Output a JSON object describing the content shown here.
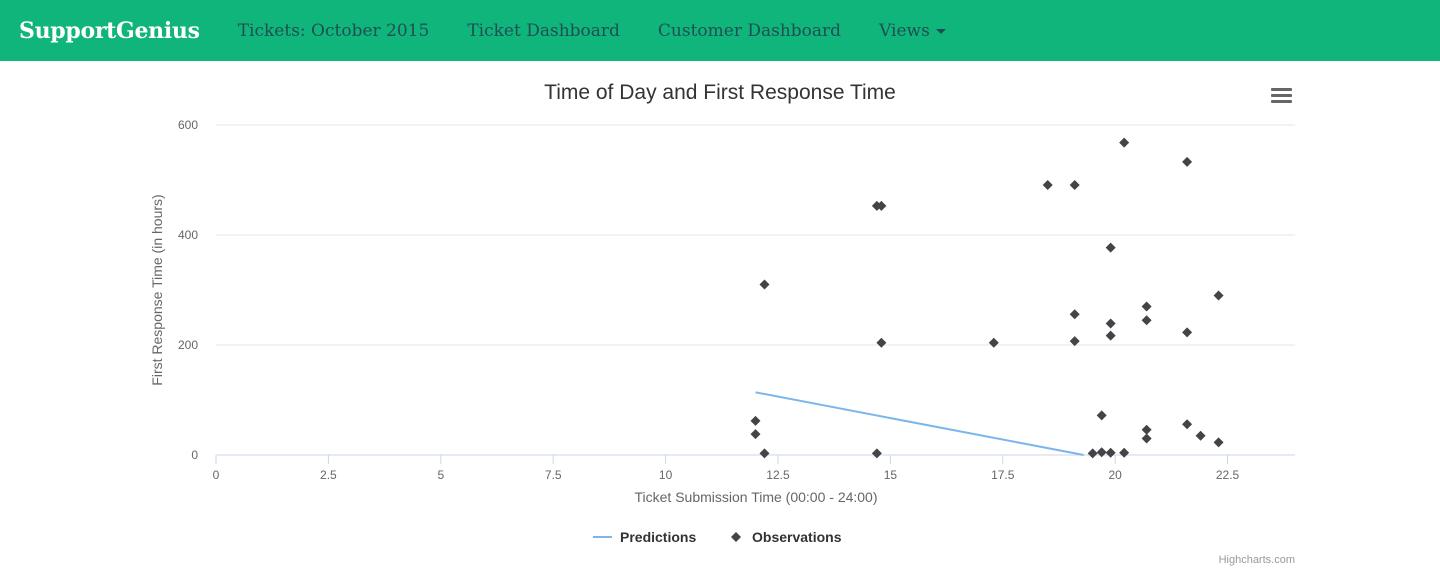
{
  "navbar": {
    "brand": "SupportGenius",
    "links": [
      {
        "label": "Tickets: October 2015"
      },
      {
        "label": "Ticket Dashboard"
      },
      {
        "label": "Customer Dashboard"
      },
      {
        "label": "Views"
      }
    ]
  },
  "credits": "Highcharts.com",
  "colors": {
    "navbar": "#0fb57b",
    "nav_link": "#1f4f52",
    "predictions": "#7cb5ec",
    "observations": "#434348"
  },
  "chart_data": {
    "type": "scatter",
    "title": "Time of Day and First Response Time",
    "xlabel": "Ticket Submission Time (00:00 - 24:00)",
    "ylabel": "First Response Time (in hours)",
    "xlim": [
      0,
      24
    ],
    "ylim": [
      0,
      600
    ],
    "xticks": [
      0,
      2.5,
      5,
      7.5,
      10,
      12.5,
      15,
      17.5,
      20,
      22.5
    ],
    "xtick_labels": [
      "0",
      "2.5",
      "5",
      "7.5",
      "10",
      "12.5",
      "15",
      "17.5",
      "20",
      "22.5"
    ],
    "yticks": [
      0,
      200,
      400,
      600
    ],
    "ytick_labels": [
      "0",
      "200",
      "400",
      "600"
    ],
    "grid": true,
    "legend_position": "bottom-center",
    "series": [
      {
        "name": "Predictions",
        "type": "line",
        "color": "#7cb5ec",
        "points": [
          [
            12.0,
            114
          ],
          [
            19.3,
            0
          ]
        ]
      },
      {
        "name": "Observations",
        "type": "scatter",
        "marker": "diamond",
        "color": "#434348",
        "points": [
          [
            12.0,
            62
          ],
          [
            12.0,
            38
          ],
          [
            12.2,
            310
          ],
          [
            12.2,
            3
          ],
          [
            14.7,
            453
          ],
          [
            14.8,
            453
          ],
          [
            14.8,
            204
          ],
          [
            14.7,
            3
          ],
          [
            17.3,
            204
          ],
          [
            18.5,
            491
          ],
          [
            19.1,
            491
          ],
          [
            19.1,
            256
          ],
          [
            19.1,
            207
          ],
          [
            19.5,
            3
          ],
          [
            19.7,
            72
          ],
          [
            19.7,
            5
          ],
          [
            19.9,
            377
          ],
          [
            19.9,
            239
          ],
          [
            19.9,
            217
          ],
          [
            19.9,
            4
          ],
          [
            20.2,
            568
          ],
          [
            20.2,
            4
          ],
          [
            20.7,
            270
          ],
          [
            20.7,
            245
          ],
          [
            20.7,
            46
          ],
          [
            20.7,
            30
          ],
          [
            21.6,
            533
          ],
          [
            21.6,
            223
          ],
          [
            21.6,
            56
          ],
          [
            21.9,
            35
          ],
          [
            22.3,
            290
          ],
          [
            22.3,
            23
          ]
        ]
      }
    ]
  }
}
